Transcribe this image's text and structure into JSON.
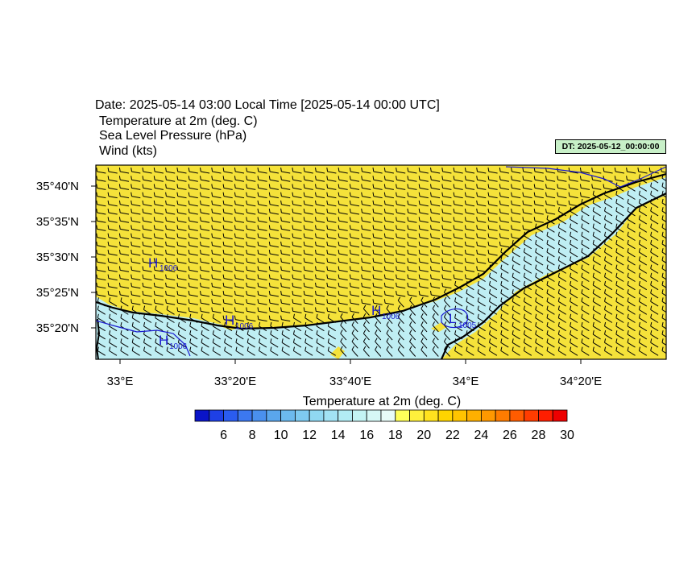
{
  "header": {
    "date_line": "Date: 2025-05-14  03:00 Local Time [2025-05-14  00:00 UTC]",
    "variables": [
      "Temperature at 2m   (deg. C)",
      "Sea Level Pressure   (hPa)",
      "Wind   (kts)"
    ],
    "dt_badge": "DT: 2025-05-12_00:00:00"
  },
  "map": {
    "lat_labels": [
      "35°40'N",
      "35°35'N",
      "35°30'N",
      "35°25'N",
      "35°20'N"
    ],
    "lon_labels": [
      "33°E",
      "33°20'E",
      "33°40'E",
      "34°E",
      "34°20'E"
    ],
    "pressure_centers": [
      {
        "type": "H",
        "value": "1006"
      },
      {
        "type": "H",
        "value": "1006"
      },
      {
        "type": "H",
        "value": "1006"
      },
      {
        "type": "H",
        "value": "1006"
      },
      {
        "type": "L",
        "value": "1005"
      }
    ],
    "colors": {
      "land_warm": "#f5e23a",
      "sea_cool": "#bfeef3",
      "coastline": "#000000",
      "isobar": "#1a1ad0"
    }
  },
  "colorbar": {
    "title": "Temperature at 2m  (deg. C)",
    "tick_labels": [
      "6",
      "8",
      "10",
      "12",
      "14",
      "16",
      "18",
      "20",
      "22",
      "24",
      "26",
      "28",
      "30"
    ],
    "colors": [
      "#0a14c8",
      "#1e40e6",
      "#2a5cf0",
      "#3c78f0",
      "#4a90ee",
      "#5aa6ec",
      "#6cbaee",
      "#7ecaf0",
      "#90d8f2",
      "#a2e2f4",
      "#b2ecf4",
      "#c4f4f4",
      "#d6f8f6",
      "#e8fcf8",
      "#ffff5a",
      "#fff03c",
      "#ffe21e",
      "#ffd400",
      "#ffc400",
      "#ffb000",
      "#ff9800",
      "#ff7c00",
      "#ff5c00",
      "#ff3c00",
      "#ff1e00",
      "#ee0000"
    ]
  }
}
